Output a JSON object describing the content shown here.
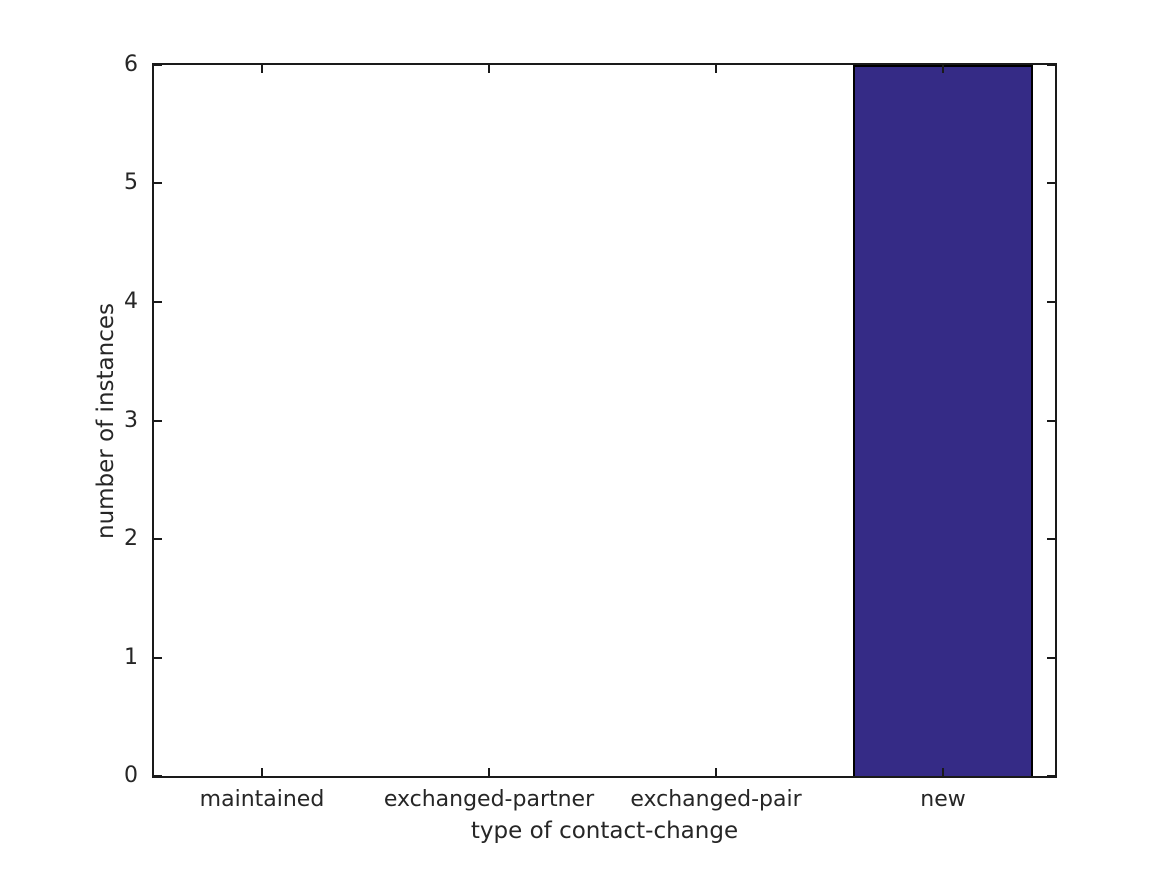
{
  "chart_data": {
    "type": "bar",
    "title": "",
    "categories": [
      "maintained",
      "exchanged-partner",
      "exchanged-pair",
      "new"
    ],
    "values": [
      0,
      0,
      0,
      6
    ],
    "xlabel": "type of contact-change",
    "ylabel": "number of instances",
    "ylim": [
      0,
      6
    ],
    "yticks": [
      0,
      1,
      2,
      3,
      4,
      5,
      6
    ],
    "grid": false,
    "legend_position": "none",
    "colors": {
      "bar_fill": "#352b86",
      "bar_border": "#000000",
      "axis": "#1a1a1a",
      "text": "#262626",
      "background": "#ffffff"
    }
  }
}
